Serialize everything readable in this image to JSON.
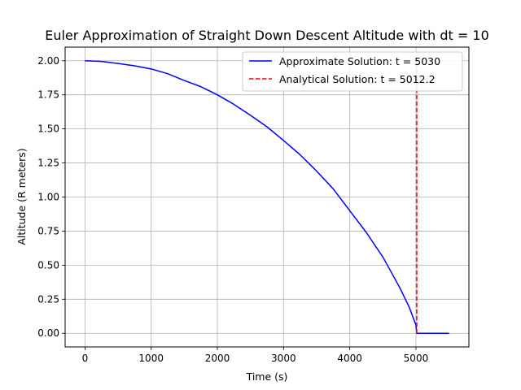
{
  "chart_data": {
    "type": "line",
    "title": "Euler Approximation of Straight Down Descent Altitude with dt = 10",
    "xlabel": "Time (s)",
    "ylabel": "Altitude (R meters)",
    "xlim": [
      -300,
      5800
    ],
    "ylim": [
      -0.1,
      2.1
    ],
    "xticks": [
      0,
      1000,
      2000,
      3000,
      4000,
      5000
    ],
    "xtick_labels": [
      "0",
      "1000",
      "2000",
      "3000",
      "4000",
      "5000"
    ],
    "yticks": [
      0.0,
      0.25,
      0.5,
      0.75,
      1.0,
      1.25,
      1.5,
      1.75,
      2.0
    ],
    "ytick_labels": [
      "0.00",
      "0.25",
      "0.50",
      "0.75",
      "1.00",
      "1.25",
      "1.50",
      "1.75",
      "2.00"
    ],
    "grid": true,
    "legend_position": "top-right",
    "series": [
      {
        "name": "Approximate Solution: t = 5030",
        "color": "#0000ff",
        "style": "solid",
        "x": [
          0,
          250,
          500,
          750,
          1000,
          1250,
          1500,
          1750,
          2000,
          2250,
          2500,
          2750,
          3000,
          3250,
          3500,
          3750,
          4000,
          4250,
          4500,
          4750,
          4900,
          5000,
          5012,
          5030,
          5500
        ],
        "y": [
          2.0,
          1.995,
          1.98,
          1.963,
          1.94,
          1.905,
          1.855,
          1.81,
          1.75,
          1.68,
          1.6,
          1.515,
          1.415,
          1.31,
          1.19,
          1.06,
          0.9,
          0.74,
          0.56,
          0.34,
          0.19,
          0.06,
          0.0,
          0.0,
          0.0
        ]
      },
      {
        "name": "Analytical Solution: t = 5012.2",
        "color": "#ff0000",
        "style": "dashed",
        "x": [
          5012.2,
          5012.2
        ],
        "y": [
          0.0,
          2.0
        ]
      }
    ]
  }
}
